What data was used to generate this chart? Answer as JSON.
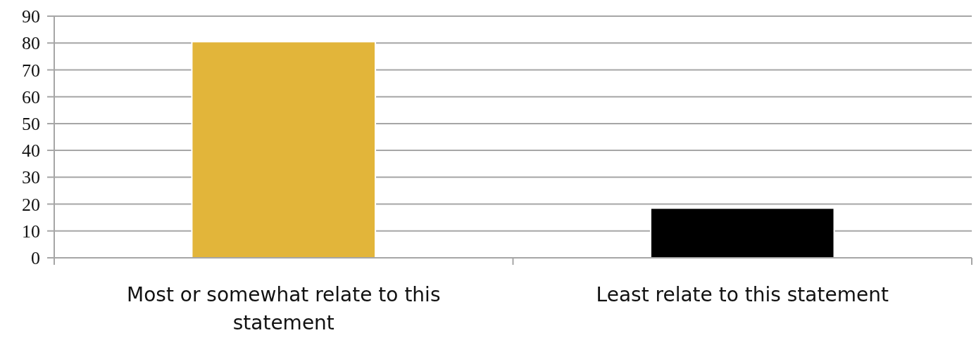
{
  "chart_data": {
    "type": "bar",
    "categories": [
      "Most or somewhat relate to this statement",
      "Least relate to this statement"
    ],
    "values": [
      80.5,
      18.5
    ],
    "colors": [
      "#e2b53a",
      "#000000"
    ],
    "ylim": [
      0,
      90
    ],
    "yticks": [
      0,
      10,
      20,
      30,
      40,
      50,
      60,
      70,
      80,
      90
    ],
    "grid": "y"
  }
}
